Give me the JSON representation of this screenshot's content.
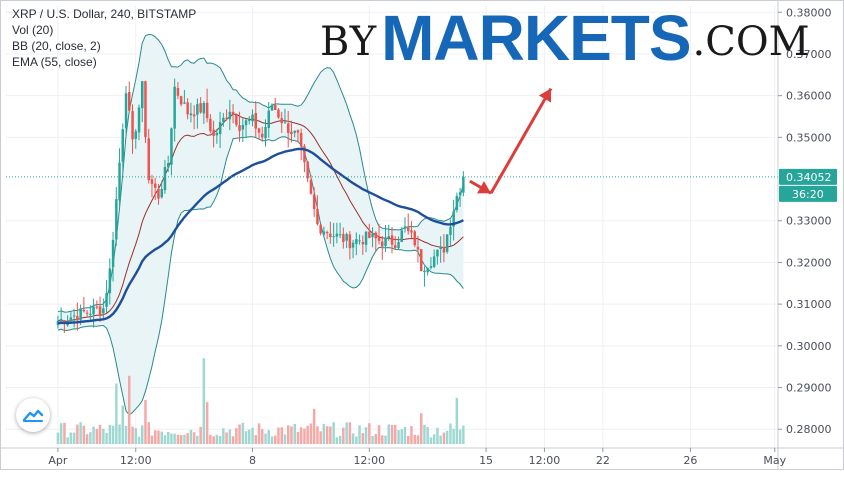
{
  "legend": {
    "line1": "XRP / U.S. Dollar, 240, BITSTAMP",
    "line2": "Vol (20)",
    "line3": "BB (20, close, 2)",
    "line4": "EMA (55, close)"
  },
  "watermark": {
    "by": "BY",
    "markets": "MARKETS",
    "com": ".COM"
  },
  "price_badge": "0.34052",
  "timer_badge": "36:20",
  "colors": {
    "up": "#26a69a",
    "down": "#ef5350",
    "ema": "#1f4e9c",
    "bb_fill": "#e8f4f5",
    "bb_line": "#2a8a8f",
    "arrow": "#dc3d3b",
    "badge": "#26a69a"
  },
  "icons": {
    "logo": "tradingview-cloud-icon"
  },
  "chart_data": {
    "type": "candlestick",
    "ylim": [
      0.2755,
      0.3815
    ],
    "yticks": [
      {
        "v": 0.38,
        "label": "0.38000"
      },
      {
        "v": 0.37,
        "label": "0.37000"
      },
      {
        "v": 0.36,
        "label": "0.36000"
      },
      {
        "v": 0.35,
        "label": "0.35000"
      },
      {
        "v": 0.33,
        "label": "0.33000"
      },
      {
        "v": 0.32,
        "label": "0.32000"
      },
      {
        "v": 0.31,
        "label": "0.31000"
      },
      {
        "v": 0.3,
        "label": "0.30000"
      },
      {
        "v": 0.29,
        "label": "0.29000"
      },
      {
        "v": 0.28,
        "label": "0.28000"
      }
    ],
    "xlim": [
      -16,
      222
    ],
    "xticks": [
      {
        "bar": 0,
        "label": "Apr"
      },
      {
        "bar": 24,
        "label": "12:00"
      },
      {
        "bar": 60,
        "label": "8"
      },
      {
        "bar": 96,
        "label": "12:00"
      },
      {
        "bar": 132,
        "label": "15"
      },
      {
        "bar": 150,
        "label": "12:00"
      },
      {
        "bar": 168,
        "label": "22"
      },
      {
        "bar": 195,
        "label": "26"
      },
      {
        "bar": 221,
        "label": "May"
      }
    ],
    "last_price": 0.34052,
    "anchors": [
      {
        "i": 0,
        "p": 0.306
      },
      {
        "i": 8,
        "p": 0.308
      },
      {
        "i": 14,
        "p": 0.309
      },
      {
        "i": 16,
        "p": 0.318
      },
      {
        "i": 18,
        "p": 0.335
      },
      {
        "i": 21,
        "p": 0.362
      },
      {
        "i": 23,
        "p": 0.348
      },
      {
        "i": 26,
        "p": 0.362
      },
      {
        "i": 28,
        "p": 0.34
      },
      {
        "i": 31,
        "p": 0.336
      },
      {
        "i": 34,
        "p": 0.344
      },
      {
        "i": 36,
        "p": 0.362
      },
      {
        "i": 40,
        "p": 0.356
      },
      {
        "i": 45,
        "p": 0.357
      },
      {
        "i": 48,
        "p": 0.35
      },
      {
        "i": 53,
        "p": 0.357
      },
      {
        "i": 56,
        "p": 0.353
      },
      {
        "i": 60,
        "p": 0.354
      },
      {
        "i": 63,
        "p": 0.35
      },
      {
        "i": 66,
        "p": 0.358
      },
      {
        "i": 70,
        "p": 0.353
      },
      {
        "i": 74,
        "p": 0.35
      },
      {
        "i": 77,
        "p": 0.339
      },
      {
        "i": 80,
        "p": 0.329
      },
      {
        "i": 84,
        "p": 0.327
      },
      {
        "i": 90,
        "p": 0.325
      },
      {
        "i": 96,
        "p": 0.326
      },
      {
        "i": 100,
        "p": 0.325
      },
      {
        "i": 104,
        "p": 0.325
      },
      {
        "i": 107,
        "p": 0.328
      },
      {
        "i": 110,
        "p": 0.325
      },
      {
        "i": 112,
        "p": 0.319
      },
      {
        "i": 114,
        "p": 0.32
      },
      {
        "i": 117,
        "p": 0.322
      },
      {
        "i": 119,
        "p": 0.3235
      },
      {
        "i": 121,
        "p": 0.33
      },
      {
        "i": 123,
        "p": 0.336
      },
      {
        "i": 125,
        "p": 0.34052
      }
    ],
    "volume_spikes": [
      {
        "i": 18,
        "v": 0.55
      },
      {
        "i": 20,
        "v": 0.35
      },
      {
        "i": 22,
        "v": 0.62
      },
      {
        "i": 27,
        "v": 0.4
      },
      {
        "i": 45,
        "v": 0.78
      },
      {
        "i": 46,
        "v": 0.38
      },
      {
        "i": 79,
        "v": 0.32
      },
      {
        "i": 112,
        "v": 0.28
      },
      {
        "i": 123,
        "v": 0.42
      }
    ]
  }
}
